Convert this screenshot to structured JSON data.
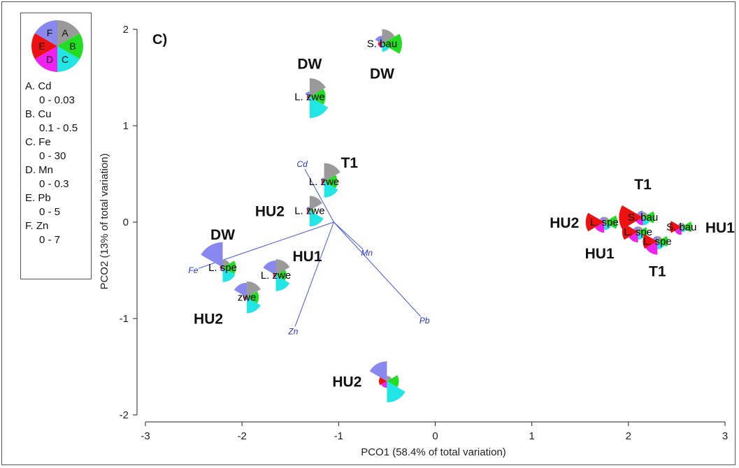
{
  "legend": {
    "key_letters": [
      "A",
      "B",
      "C",
      "D",
      "E",
      "F"
    ],
    "entries": [
      {
        "label": "A. Cd",
        "range": "0 - 0.03",
        "color": "#9a9a9a"
      },
      {
        "label": "B. Cu",
        "range": "0.1 - 0.5",
        "color": "#22dd22"
      },
      {
        "label": "C. Fe",
        "range": "0 - 30",
        "color": "#22e5e5"
      },
      {
        "label": "D. Mn",
        "range": "0 - 0.3",
        "color": "#ee22ee"
      },
      {
        "label": "E. Pb",
        "range": "0 - 5",
        "color": "#ee1111"
      },
      {
        "label": "F. Zn",
        "range": "0 - 7",
        "color": "#8888ee"
      }
    ]
  },
  "chart_data": {
    "type": "scatter",
    "marker": "segmented star glyph (A–F)",
    "panel_label": "C)",
    "xlabel": "PCO1 (58.4% of total variation)",
    "ylabel": "PCO2 (13% of total variation)",
    "xlim": [
      -3,
      3
    ],
    "ylim": [
      -2,
      2
    ],
    "x_ticks": [
      -3,
      -2,
      -1,
      0,
      1,
      2,
      3
    ],
    "y_ticks": [
      -2,
      -1,
      0,
      1,
      2
    ],
    "grid": false,
    "legend_position": "top-left",
    "points": [
      {
        "x": -0.55,
        "y": 1.85,
        "species": "S. bau",
        "group": "DW",
        "group_label_pos": "below",
        "seg": [
          0.55,
          0.75,
          0.3,
          0.15,
          0.15,
          0.3
        ]
      },
      {
        "x": -1.3,
        "y": 1.3,
        "species": "L. zwe",
        "group": "DW",
        "group_label_pos": "above",
        "seg": [
          0.7,
          0.6,
          0.8,
          0.1,
          0.1,
          0.2
        ]
      },
      {
        "x": -1.15,
        "y": 0.42,
        "species": "L. zwe",
        "group": "T1",
        "group_label_pos": "above-right",
        "seg": [
          0.7,
          0.5,
          0.6,
          0.1,
          0.1,
          0.15
        ]
      },
      {
        "x": -1.3,
        "y": 0.12,
        "species": "L. zwe",
        "group": "HU2",
        "group_label_pos": "left",
        "seg": [
          0.55,
          0.15,
          0.6,
          0.1,
          0.1,
          0.15
        ]
      },
      {
        "x": -2.2,
        "y": -0.47,
        "species": "L. spe",
        "group": "DW",
        "group_label_pos": "above",
        "seg": [
          0.3,
          0.5,
          0.55,
          0.1,
          0.1,
          0.95
        ]
      },
      {
        "x": -1.65,
        "y": -0.55,
        "species": "L. zwe",
        "group": "HU1",
        "group_label_pos": "above-right",
        "seg": [
          0.6,
          0.4,
          0.6,
          0.1,
          0.1,
          0.55
        ]
      },
      {
        "x": -1.95,
        "y": -0.78,
        "species": "zwe",
        "group": "HU2",
        "group_label_pos": "below-left",
        "seg": [
          0.6,
          0.45,
          0.6,
          0.1,
          0.1,
          0.55
        ]
      },
      {
        "x": -0.5,
        "y": -1.65,
        "species": "",
        "group": "HU2",
        "group_label_pos": "left",
        "seg": [
          0.2,
          0.45,
          0.8,
          0.25,
          0.3,
          0.75
        ]
      },
      {
        "x": 1.75,
        "y": 0.0,
        "species": "L. spe",
        "group": "HU2",
        "group_label_pos": "left",
        "seg": [
          0.2,
          0.5,
          0.3,
          0.4,
          0.7,
          0.2
        ]
      },
      {
        "x": 2.15,
        "y": 0.05,
        "species": "S. bau",
        "group": "T1",
        "group_label_pos": "above",
        "seg": [
          0.2,
          0.45,
          0.3,
          0.3,
          0.9,
          0.25
        ]
      },
      {
        "x": 2.1,
        "y": -0.1,
        "species": "L. spe",
        "group": "HU1",
        "group_label_pos": "below-left",
        "seg": [
          0.2,
          0.35,
          0.3,
          0.4,
          0.6,
          0.2
        ]
      },
      {
        "x": 2.3,
        "y": -0.2,
        "species": "L. spe",
        "group": "T1",
        "group_label_pos": "below",
        "seg": [
          0.2,
          0.4,
          0.3,
          0.5,
          0.55,
          0.2
        ]
      },
      {
        "x": 2.55,
        "y": -0.05,
        "species": "S. bau",
        "group": "HU1",
        "group_label_pos": "right",
        "seg": [
          0.15,
          0.4,
          0.2,
          0.3,
          0.45,
          0.15
        ]
      }
    ],
    "vectors": [
      {
        "name": "Cd",
        "x": -1.35,
        "y": 0.55
      },
      {
        "name": "Fe",
        "x": -2.45,
        "y": -0.48
      },
      {
        "name": "Zn",
        "x": -1.45,
        "y": -1.08
      },
      {
        "name": "Mn",
        "x": -0.75,
        "y": -0.28
      },
      {
        "name": "Pb",
        "x": -0.15,
        "y": -0.98
      }
    ],
    "vector_origin": {
      "x": -1.05,
      "y": 0.0
    }
  }
}
